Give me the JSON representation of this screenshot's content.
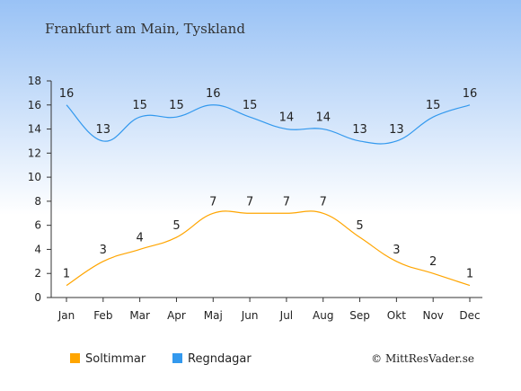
{
  "chart_data": {
    "type": "line",
    "title": "Frankfurt am Main, Tyskland",
    "categories": [
      "Jan",
      "Feb",
      "Mar",
      "Apr",
      "Maj",
      "Jun",
      "Jul",
      "Aug",
      "Sep",
      "Okt",
      "Nov",
      "Dec"
    ],
    "series": [
      {
        "name": "Soltimmar",
        "color": "#FFA500",
        "values": [
          1,
          3,
          4,
          5,
          7,
          7,
          7,
          7,
          5,
          3,
          2,
          1
        ]
      },
      {
        "name": "Regndagar",
        "color": "#3399EE",
        "values": [
          16,
          13,
          15,
          15,
          16,
          15,
          14,
          14,
          13,
          13,
          15,
          16
        ]
      }
    ],
    "yticks": [
      "0",
      "2",
      "4",
      "6",
      "8",
      "10",
      "12",
      "14",
      "16",
      "18"
    ],
    "ylim": [
      0,
      18
    ],
    "grid": false,
    "legend_placement": "bottom-left"
  },
  "credit": "© MittResVader.se",
  "colors": {
    "background_top": "#99C2F5",
    "background_bottom": "#FFFFFF",
    "axis": "#333333"
  }
}
